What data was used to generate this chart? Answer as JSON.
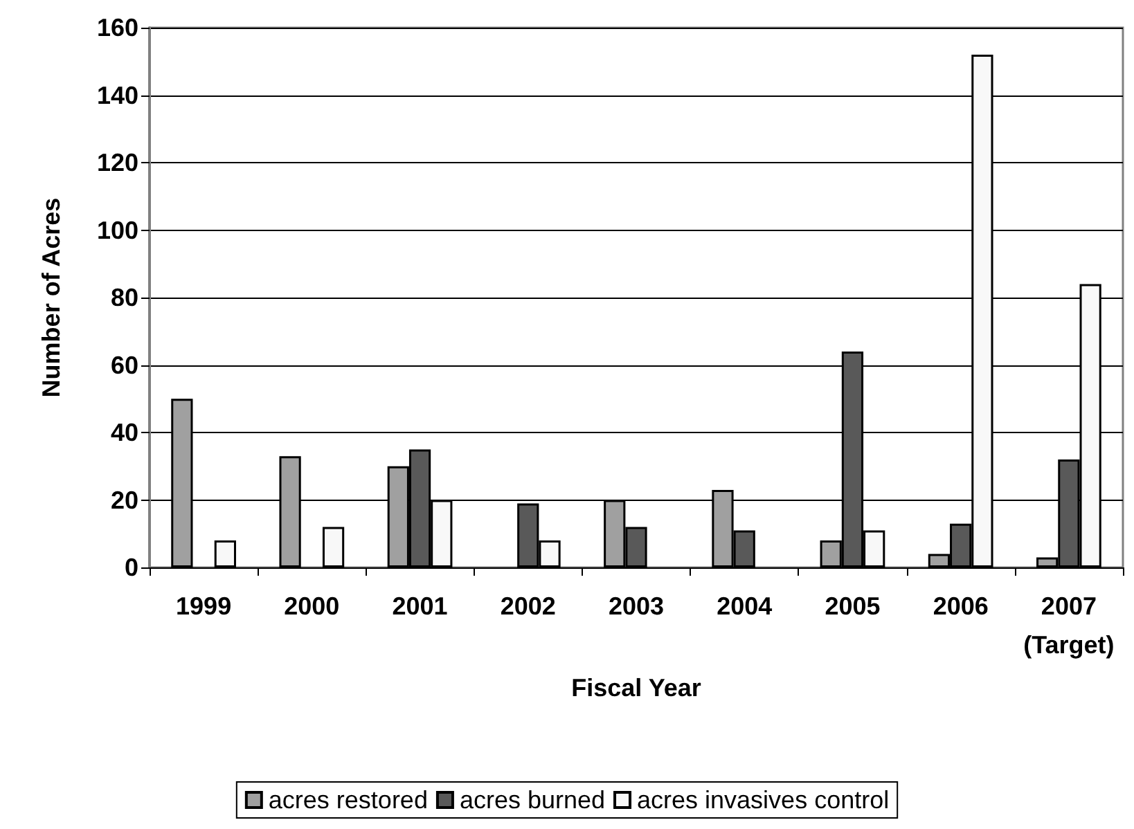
{
  "chart_data": {
    "type": "bar",
    "xlabel": "Fiscal Year",
    "ylabel": "Number of Acres",
    "categories": [
      "1999",
      "2000",
      "2001",
      "2002",
      "2003",
      "2004",
      "2005",
      "2006",
      "2007\n(Target)"
    ],
    "series": [
      {
        "name": "acres restored",
        "color": "#a0a0a0",
        "values": [
          50,
          33,
          30,
          null,
          20,
          23,
          8,
          4,
          3
        ]
      },
      {
        "name": "acres burned",
        "color": "#595959",
        "values": [
          null,
          null,
          35,
          19,
          12,
          11,
          64,
          13,
          32
        ]
      },
      {
        "name": "acres invasives control",
        "color": "#f8f8f8",
        "values": [
          8,
          12,
          20,
          8,
          null,
          null,
          11,
          152,
          84
        ]
      }
    ],
    "ylim": [
      0,
      160
    ],
    "yticks": [
      0,
      20,
      40,
      60,
      80,
      100,
      120,
      140,
      160
    ],
    "grid": "y",
    "legend": "bottom"
  }
}
